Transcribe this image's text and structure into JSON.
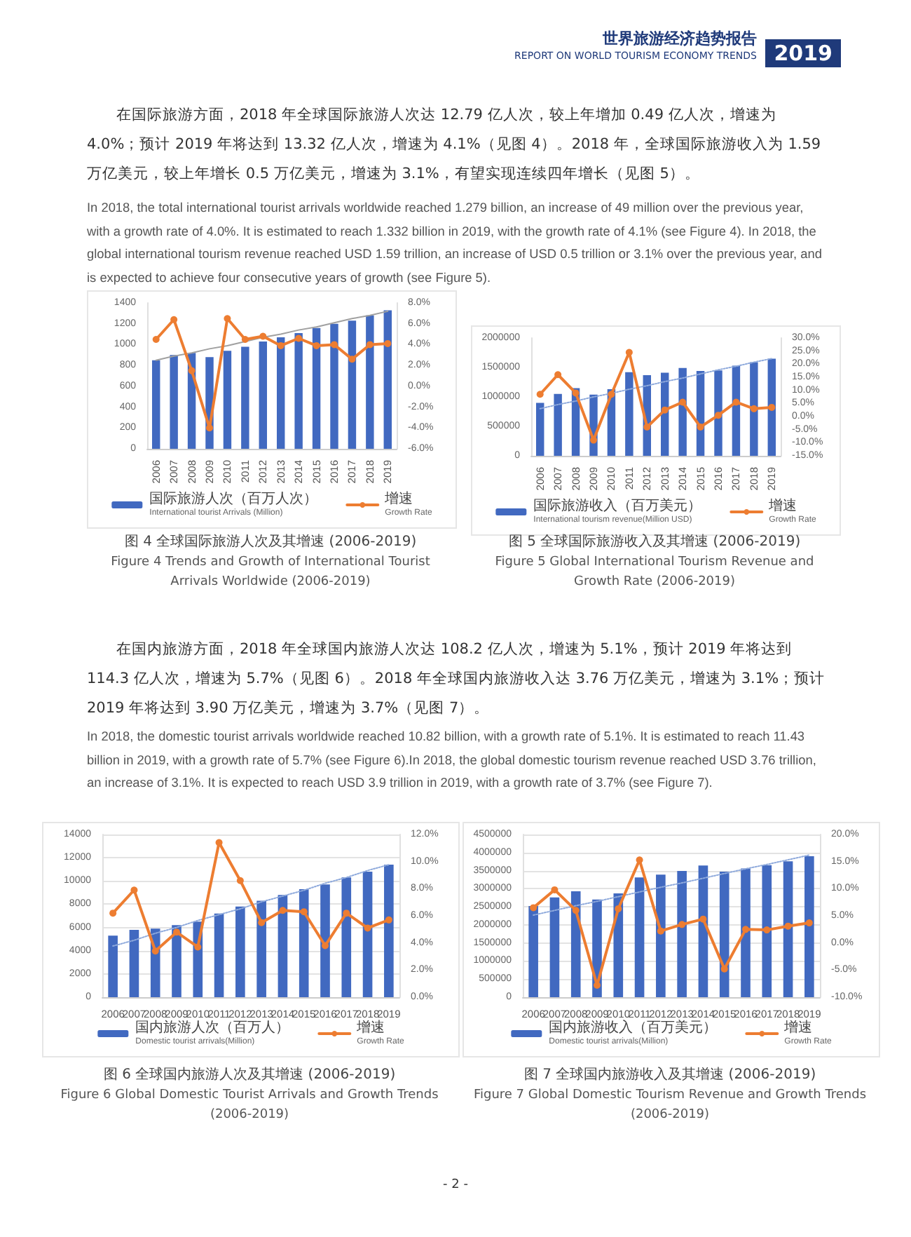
{
  "chart_data": [
    {
      "type": "bar",
      "title": "图 4 全球国际旅游人次及其增速 (2006-2019)",
      "subtitle": "Figure 4 Trends and Growth of International Tourist Arrivals Worldwide (2006-2019)",
      "annotations": [
        "世界旅游经济趋势报告",
        "REPORT ON WORLD TOURISM ECONOMY TRENDS",
        "2019",
        "在国际旅游方面，2018 年全球国际旅游人次达 12.79 亿人次，较上年增加 0.49 亿人次，增速为 4.0%；预计 2019 年将达到 13.32 亿人次，增速为 4.1%（见图 4）。2018 年，全球国际旅游收入为 1.59 万亿美元，较上年增长 0.5 万亿美元，增速为 3.1%，有望实现连续四年增长（见图 5）。",
        "In 2018, the total international tourist arrivals worldwide reached 1.279 billion, an increase of 49 million over the previous year, with a growth rate of 4.0%. It is estimated to reach 1.332 billion in 2019, with the growth rate of 4.1% (see Figure 4). In 2018, the global international tourism revenue reached USD 1.59 trillion, an increase of USD 0.5 trillion or 3.1% over the previous year, and is expected to achieve four consecutive years of growth (see Figure 5)."
      ],
      "categories": [
        "2006",
        "2007",
        "2008",
        "2009",
        "2010",
        "2011",
        "2012",
        "2013",
        "2014",
        "2015",
        "2016",
        "2017",
        "2018",
        "2019"
      ],
      "series": [
        {
          "name": "国际旅游人次（百万人次）\nInternational tourist Arrivals (Million)",
          "color": "#4169c0",
          "values": [
            850,
            900,
            920,
            880,
            940,
            980,
            1030,
            1070,
            1110,
            1160,
            1200,
            1230,
            1280,
            1330
          ]
        },
        {
          "name": "增速\nGrowth Rate",
          "type": "line",
          "axis": "y2",
          "color": "#ed7d31",
          "marker": "circle",
          "values": [
            4.5,
            6.4,
            1.5,
            -4.0,
            6.5,
            4.5,
            4.8,
            3.9,
            4.6,
            3.9,
            4.0,
            2.6,
            4.0,
            4.1
          ]
        },
        {
          "type": "line",
          "color": "#a0a0a0",
          "marker": "none",
          "line_style": "solid",
          "values": [
            850,
            890,
            920,
            960,
            990,
            1030,
            1070,
            1100,
            1140,
            1170,
            1210,
            1250,
            1280,
            1320
          ]
        }
      ],
      "ylim": [
        0,
        1400
      ],
      "yticks": [
        0,
        200,
        400,
        600,
        800,
        1000,
        1200,
        1400
      ],
      "y2lim": [
        -6,
        8
      ],
      "y2ticks": [
        {
          "value": -6,
          "label": "-6.0%"
        },
        {
          "value": -4,
          "label": "-4.0%"
        },
        {
          "value": -2,
          "label": "-2.0%"
        },
        {
          "value": 0,
          "label": "0.0%"
        },
        {
          "value": 2,
          "label": "2.0%"
        },
        {
          "value": 4,
          "label": "4.0%"
        },
        {
          "value": 6,
          "label": "6.0%"
        },
        {
          "value": 8,
          "label": "8.0%"
        }
      ],
      "grid": false,
      "legend": "bottom"
    },
    {
      "type": "bar",
      "title": "图 5 全球国际旅游收入及其增速 (2006-2019)",
      "subtitle": "Figure 5 Global International Tourism Revenue and Growth Rate (2006-2019)",
      "categories": [
        "2006",
        "2007",
        "2008",
        "2009",
        "2010",
        "2011",
        "2012",
        "2013",
        "2014",
        "2015",
        "2016",
        "2017",
        "2018",
        "2019"
      ],
      "series": [
        {
          "name": "国际旅游收入（百万美元）\nInternational tourism revenue(Million USD)",
          "color": "#4169c0",
          "values": [
            900000,
            1050000,
            1150000,
            1040000,
            1130000,
            1420000,
            1370000,
            1410000,
            1490000,
            1440000,
            1450000,
            1530000,
            1590000,
            1650000
          ]
        },
        {
          "name": "增速\nGrowth Rate",
          "type": "line",
          "axis": "y2",
          "color": "#ed7d31",
          "marker": "circle",
          "values": [
            8.5,
            16.0,
            9.0,
            -9.0,
            8.5,
            24.5,
            -4.0,
            2.5,
            5.5,
            -4.0,
            0.5,
            5.5,
            3.0,
            3.5
          ]
        },
        {
          "type": "line",
          "color": "#8faadc",
          "marker": "none",
          "line_style": "dotted",
          "values": [
            800000,
            870000,
            930000,
            1000000,
            1060000,
            1130000,
            1190000,
            1260000,
            1320000,
            1390000,
            1460000,
            1520000,
            1590000,
            1650000
          ]
        }
      ],
      "ylim": [
        0,
        2000000
      ],
      "yticks": [
        0,
        500000,
        1000000,
        1500000,
        2000000
      ],
      "y2lim": [
        -15,
        30
      ],
      "y2ticks": [
        {
          "value": -15,
          "label": "-15.0%"
        },
        {
          "value": -10,
          "label": "-10.0%"
        },
        {
          "value": -5,
          "label": "-5.0%"
        },
        {
          "value": 0,
          "label": "0.0%"
        },
        {
          "value": 5,
          "label": "5.0%"
        },
        {
          "value": 10,
          "label": "10.0%"
        },
        {
          "value": 15,
          "label": "15.0%"
        },
        {
          "value": 20,
          "label": "20.0%"
        },
        {
          "value": 25,
          "label": "25.0%"
        },
        {
          "value": 30,
          "label": "30.0%"
        }
      ],
      "grid": false,
      "legend": "bottom"
    },
    {
      "type": "bar",
      "title": "图 6 全球国内旅游人次及其增速 (2006-2019)",
      "subtitle": "Figure 6 Global Domestic Tourist Arrivals and Growth Trends (2006-2019)",
      "annotations": [
        "在国内旅游方面，2018 年全球国内旅游人次达 108.2 亿人次，增速为 5.1%，预计 2019 年将达到 114.3 亿人次，增速为 5.7%（见图 6）。2018 年全球国内旅游收入达 3.76 万亿美元，增速为 3.1%；预计 2019 年将达到 3.90 万亿美元，增速为 3.7%（见图 7）。",
        "In 2018, the domestic tourist arrivals worldwide reached 10.82 billion, with a growth rate of 5.1%. It is estimated to reach 11.43 billion in 2019, with a growth rate of 5.7% (see Figure 6).In 2018, the global domestic tourism revenue reached USD 3.76 trillion, an increase of 3.1%. It is expected to reach USD 3.9 trillion in 2019, with a growth rate of 3.7% (see Figure 7)."
      ],
      "categories": [
        "2006",
        "2007",
        "2008",
        "2009",
        "2010",
        "2011",
        "2012",
        "2013",
        "2014",
        "2015",
        "2016",
        "2017",
        "2018",
        "2019"
      ],
      "series": [
        {
          "name": "国内旅游人次（百万人）\nDomestic tourist arrivals(Million)",
          "color": "#4169c0",
          "values": [
            5300,
            5800,
            5900,
            6200,
            6500,
            7200,
            7800,
            8300,
            8800,
            9300,
            9700,
            10300,
            10800,
            11400
          ]
        },
        {
          "name": "增速\nGrowth Rate",
          "type": "line",
          "axis": "y2",
          "color": "#ed7d31",
          "marker": "circle",
          "values": [
            6.2,
            7.9,
            3.4,
            4.8,
            3.7,
            11.4,
            8.6,
            5.5,
            6.4,
            6.3,
            3.8,
            6.2,
            5.1,
            5.7
          ]
        },
        {
          "type": "line",
          "color": "#8faadc",
          "marker": "none",
          "line_style": "dotted",
          "values": [
            4400,
            4900,
            5500,
            6000,
            6600,
            7100,
            7600,
            8200,
            8700,
            9200,
            9800,
            10300,
            10900,
            11400
          ]
        }
      ],
      "ylim": [
        0,
        14000
      ],
      "yticks": [
        0,
        2000,
        4000,
        6000,
        8000,
        10000,
        12000,
        14000
      ],
      "y2lim": [
        0,
        12
      ],
      "y2ticks": [
        {
          "value": 0,
          "label": "0.0%"
        },
        {
          "value": 2,
          "label": "2.0%"
        },
        {
          "value": 4,
          "label": "4.0%"
        },
        {
          "value": 6,
          "label": "6.0%"
        },
        {
          "value": 8,
          "label": "8.0%"
        },
        {
          "value": 10,
          "label": "10.0%"
        },
        {
          "value": 12,
          "label": "12.0%"
        }
      ],
      "grid": "y",
      "legend": "bottom"
    },
    {
      "type": "bar",
      "title": "图 7 全球国内旅游收入及其增速 (2006-2019)",
      "subtitle": "Figure 7 Global Domestic Tourism Revenue and Growth Trends (2006-2019)",
      "annotations": [
        "- 2 -"
      ],
      "categories": [
        "2006",
        "2007",
        "2008",
        "2009",
        "2010",
        "2011",
        "2012",
        "2013",
        "2014",
        "2015",
        "2016",
        "2017",
        "2018",
        "2019"
      ],
      "series": [
        {
          "name": "国内旅游收入（百万美元）\nDomestic tourist arrivals(Million)",
          "color": "#4169c0",
          "values": [
            2520000,
            2760000,
            2930000,
            2700000,
            2870000,
            3310000,
            3390000,
            3490000,
            3640000,
            3470000,
            3560000,
            3650000,
            3760000,
            3900000
          ]
        },
        {
          "name": "增速\nGrowth Rate",
          "type": "line",
          "axis": "y2",
          "color": "#ed7d31",
          "marker": "circle",
          "values": [
            6.5,
            9.8,
            6.0,
            -7.8,
            6.3,
            15.3,
            2.2,
            3.4,
            4.4,
            -4.8,
            2.5,
            2.4,
            3.1,
            3.7
          ]
        },
        {
          "type": "line",
          "color": "#8faadc",
          "marker": "none",
          "line_style": "dotted",
          "values": [
            2270000,
            2400000,
            2530000,
            2650000,
            2780000,
            2910000,
            3040000,
            3160000,
            3290000,
            3420000,
            3550000,
            3670000,
            3800000,
            3930000
          ]
        }
      ],
      "ylim": [
        0,
        4500000
      ],
      "yticks": [
        0,
        500000,
        1000000,
        1500000,
        2000000,
        2500000,
        3000000,
        3500000,
        4000000,
        4500000
      ],
      "y2lim": [
        -10,
        20
      ],
      "y2ticks": [
        {
          "value": -10,
          "label": "-10.0%"
        },
        {
          "value": -5,
          "label": "-5.0%"
        },
        {
          "value": 0,
          "label": "0.0%"
        },
        {
          "value": 5,
          "label": "5.0%"
        },
        {
          "value": 10,
          "label": "10.0%"
        },
        {
          "value": 15,
          "label": "15.0%"
        },
        {
          "value": 20,
          "label": "20.0%"
        }
      ],
      "grid": "y",
      "legend": "bottom"
    }
  ]
}
